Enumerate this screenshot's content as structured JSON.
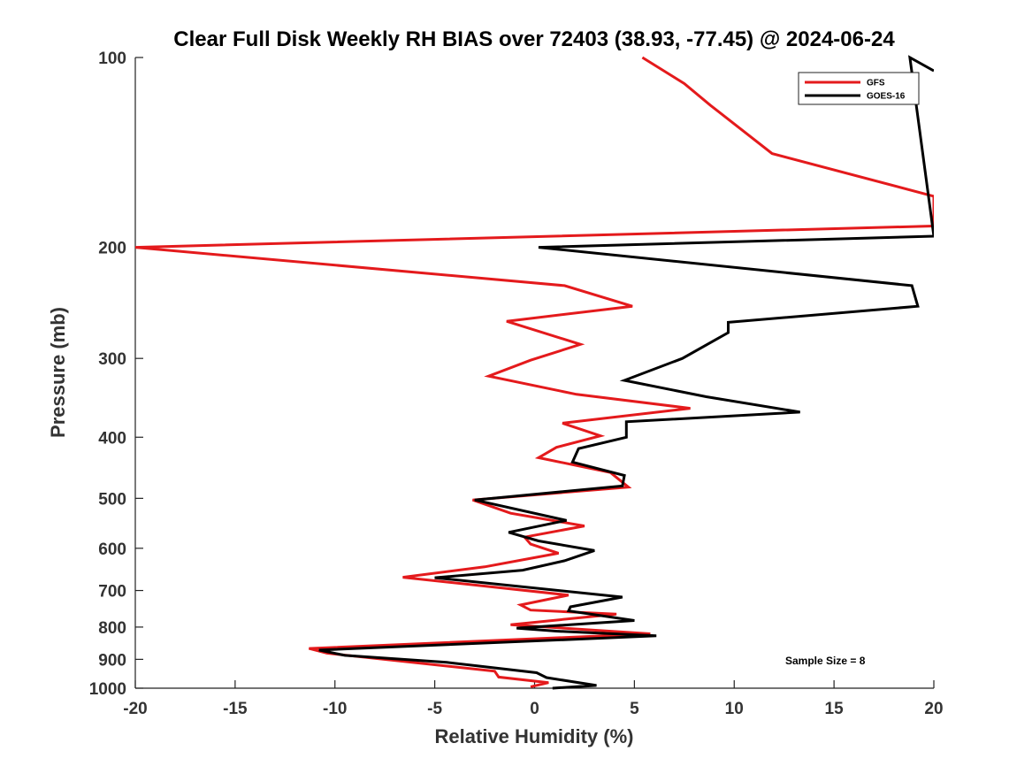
{
  "chart_data": {
    "type": "line",
    "title": "Clear Full Disk Weekly RH BIAS over 72403 (38.93, -77.45) @ 2024-06-24",
    "xlabel": "Relative Humidity (%)",
    "ylabel": "Pressure (mb)",
    "xlim": [
      -20,
      20
    ],
    "ylim": [
      100,
      1000
    ],
    "y_scale": "log",
    "y_reversed": true,
    "xticks": [
      -20,
      -15,
      -10,
      -5,
      0,
      5,
      10,
      15,
      20
    ],
    "xtick_labels": [
      "-20",
      "-15",
      "-10",
      "-5",
      "0",
      "5",
      "10",
      "15",
      "20"
    ],
    "yticks": [
      100,
      200,
      300,
      400,
      500,
      600,
      700,
      800,
      900,
      1000
    ],
    "ytick_labels": [
      "100",
      "200",
      "300",
      "400",
      "500",
      "600",
      "700",
      "800",
      "900",
      "1000"
    ],
    "grid": false,
    "legend": {
      "position": "top-right"
    },
    "annotation": "Sample Size = 8",
    "series": [
      {
        "name": "GFS",
        "color": "#e41a1c",
        "points": [
          [
            5.4,
            100
          ],
          [
            7.5,
            110
          ],
          [
            8.8,
            119
          ],
          [
            11.9,
            142
          ],
          [
            20,
            166
          ],
          [
            20,
            185
          ],
          [
            -20,
            200
          ],
          [
            1.5,
            230
          ],
          [
            4.9,
            248
          ],
          [
            -1.4,
            262
          ],
          [
            2.3,
            285
          ],
          [
            -0.2,
            302
          ],
          [
            -2.3,
            320
          ],
          [
            2.1,
            342
          ],
          [
            7.8,
            360
          ],
          [
            1.4,
            380
          ],
          [
            3.3,
            398
          ],
          [
            1.1,
            415
          ],
          [
            0.2,
            431
          ],
          [
            3.8,
            455
          ],
          [
            4.7,
            480
          ],
          [
            -3.1,
            503
          ],
          [
            -1.2,
            528
          ],
          [
            2.5,
            553
          ],
          [
            -0.5,
            576
          ],
          [
            -0.2,
            591
          ],
          [
            1.2,
            611
          ],
          [
            -2.5,
            642
          ],
          [
            -6.6,
            667
          ],
          [
            1.7,
            712
          ],
          [
            -0.7,
            738
          ],
          [
            -0.2,
            752
          ],
          [
            4.1,
            763
          ],
          [
            -1.2,
            793
          ],
          [
            5.8,
            820
          ],
          [
            -11.3,
            865
          ],
          [
            -10.4,
            880
          ],
          [
            -2.0,
            940
          ],
          [
            -1.8,
            960
          ],
          [
            0.7,
            980
          ],
          [
            -0.2,
            995
          ]
        ]
      },
      {
        "name": "GOES-16",
        "color": "#000000",
        "points": [
          [
            20,
            105
          ],
          [
            18.8,
            100
          ],
          [
            20,
            192
          ],
          [
            0.2,
            200
          ],
          [
            18.9,
            230
          ],
          [
            19.2,
            248
          ],
          [
            9.7,
            263
          ],
          [
            9.7,
            273
          ],
          [
            7.4,
            300
          ],
          [
            4.5,
            325
          ],
          [
            8.6,
            345
          ],
          [
            13.3,
            365
          ],
          [
            4.6,
            378
          ],
          [
            4.6,
            400
          ],
          [
            2.2,
            417
          ],
          [
            1.9,
            438
          ],
          [
            4.5,
            460
          ],
          [
            4.4,
            478
          ],
          [
            -3.0,
            503
          ],
          [
            1.6,
            542
          ],
          [
            -1.3,
            566
          ],
          [
            0.2,
            584
          ],
          [
            3.0,
            605
          ],
          [
            1.5,
            628
          ],
          [
            -0.6,
            650
          ],
          [
            -5.0,
            668
          ],
          [
            4.4,
            717
          ],
          [
            1.8,
            743
          ],
          [
            1.7,
            754
          ],
          [
            5.0,
            781
          ],
          [
            -0.9,
            803
          ],
          [
            1.1,
            812
          ],
          [
            6.1,
            826
          ],
          [
            -10.8,
            870
          ],
          [
            -9.5,
            887
          ],
          [
            -4.4,
            910
          ],
          [
            0.1,
            945
          ],
          [
            0.6,
            962
          ],
          [
            3.1,
            990
          ],
          [
            0.9,
            1000
          ]
        ]
      }
    ]
  }
}
